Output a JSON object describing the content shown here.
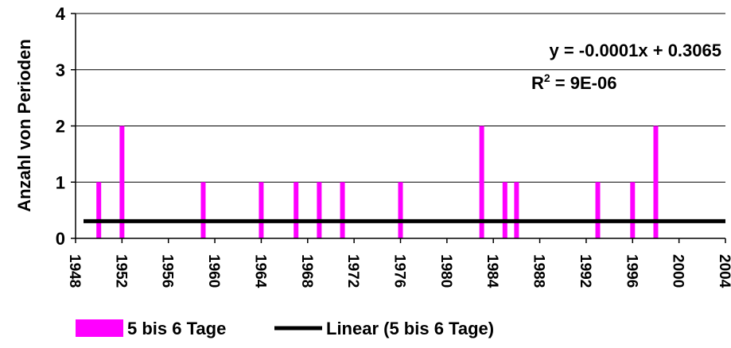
{
  "chart_data": {
    "type": "bar",
    "ylabel": "Anzahl von Perioden",
    "xlabel": "",
    "title": "",
    "ylim": [
      0,
      4
    ],
    "xlim": [
      1948,
      2004
    ],
    "yticks": [
      "0",
      "1",
      "2",
      "3",
      "4"
    ],
    "xticks": [
      "1948",
      "1952",
      "1956",
      "1960",
      "1964",
      "1968",
      "1972",
      "1976",
      "1980",
      "1984",
      "1988",
      "1992",
      "1996",
      "2000",
      "2004"
    ],
    "grid": "horizontal",
    "legend_position": "bottom",
    "colors": {
      "bars": "#ff00ff",
      "trend": "#000000"
    },
    "series": [
      {
        "name": "5 bis 6 Tage",
        "x": [
          1950,
          1952,
          1959,
          1964,
          1967,
          1969,
          1971,
          1976,
          1983,
          1985,
          1986,
          1993,
          1996,
          1998
        ],
        "values": [
          1,
          2,
          1,
          1,
          1,
          1,
          1,
          1,
          2,
          1,
          1,
          1,
          1,
          2
        ]
      }
    ],
    "trendline": {
      "name": "Linear (5 bis 6 Tage)",
      "slope": -0.0001,
      "intercept": 0.3065,
      "equation": "y = -0.0001x + 0.3065",
      "r2_prefix": "R",
      "r2_sup": "2",
      "r2_suffix": " = 9E-06"
    }
  }
}
